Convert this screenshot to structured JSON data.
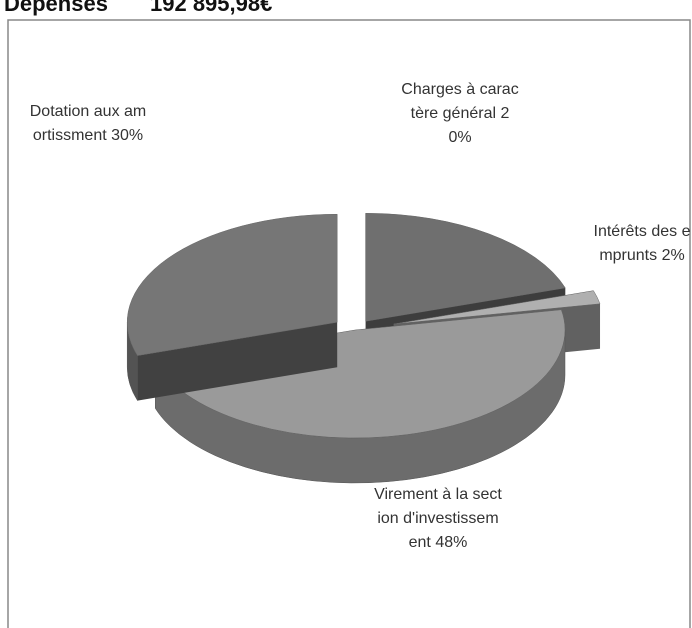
{
  "chart_data": {
    "type": "pie",
    "title": "Dépenses",
    "subtitle": "192 895,98€",
    "categories": [
      "Charges à caractère général",
      "Intérêts des emprunts",
      "Virement à la section d'investissement",
      "Dotation aux amortissment"
    ],
    "values": [
      20,
      2,
      48,
      30
    ],
    "value_labels": [
      "20%",
      "2%",
      "48%",
      "30%"
    ],
    "colors": [
      "#6f6f6f",
      "#b0b0b0",
      "#9a9a9a",
      "#767676"
    ]
  }
}
